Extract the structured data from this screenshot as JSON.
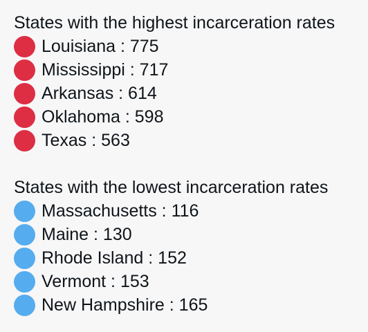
{
  "colors": {
    "high_dot": "#dd2e44",
    "low_dot": "#55acee"
  },
  "highest": {
    "heading": "States with the highest incarceration rates",
    "icon": "red-circle-icon",
    "items": [
      {
        "label": "Louisiana : 775"
      },
      {
        "label": "Mississippi : 717"
      },
      {
        "label": "Arkansas : 614"
      },
      {
        "label": "Oklahoma : 598"
      },
      {
        "label": "Texas : 563"
      }
    ]
  },
  "lowest": {
    "heading": "States with the lowest incarceration rates",
    "icon": "blue-circle-icon",
    "items": [
      {
        "label": "Massachusetts : 116"
      },
      {
        "label": "Maine : 130"
      },
      {
        "label": "Rhode Island : 152"
      },
      {
        "label": "Vermont : 153"
      },
      {
        "label": "New Hampshire : 165"
      }
    ]
  }
}
